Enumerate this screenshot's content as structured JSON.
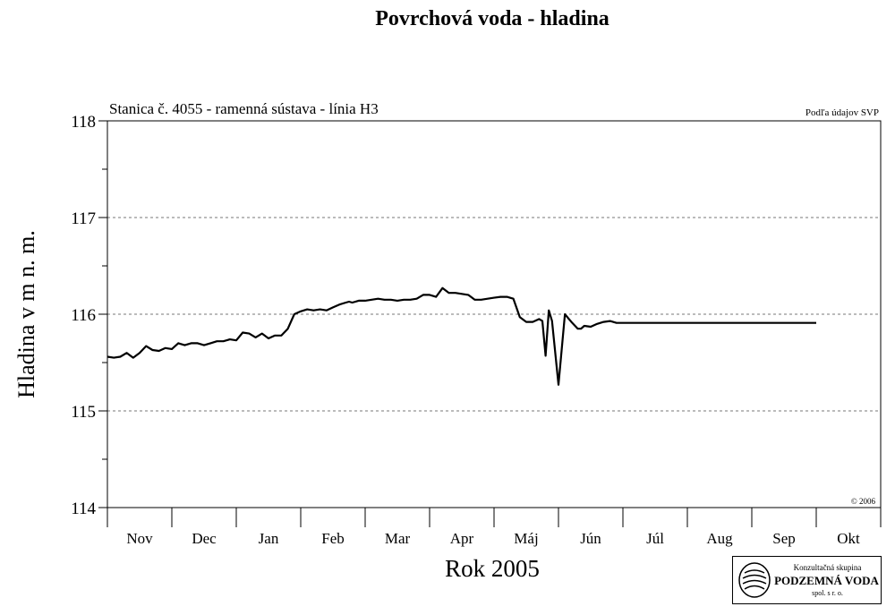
{
  "chart_data": {
    "type": "line",
    "title": "Povrchová voda - hladina",
    "subtitle": "Stanica č. 4055 - ramenná sústava - línia H3",
    "source_note": "Podľa údajov SVP",
    "copyright": "© 2006",
    "xlabel": "Rok 2005",
    "ylabel": "Hladina v m n. m.",
    "ylim": [
      114,
      118
    ],
    "yticks": [
      114,
      115,
      116,
      117,
      118
    ],
    "grid": "dashed horizontal at 115, 116, 117",
    "months": [
      "Nov",
      "Dec",
      "Jan",
      "Feb",
      "Mar",
      "Apr",
      "Máj",
      "Jún",
      "Júl",
      "Aug",
      "Sep",
      "Okt"
    ],
    "series": [
      {
        "color": "#000000",
        "x": [
          0,
          0.1,
          0.2,
          0.3,
          0.4,
          0.5,
          0.6,
          0.7,
          0.8,
          0.9,
          1.0,
          1.1,
          1.2,
          1.3,
          1.4,
          1.5,
          1.6,
          1.7,
          1.8,
          1.9,
          2.0,
          2.1,
          2.2,
          2.3,
          2.4,
          2.5,
          2.6,
          2.7,
          2.8,
          2.9,
          3.0,
          3.1,
          3.2,
          3.3,
          3.4,
          3.5,
          3.6,
          3.7,
          3.75,
          3.8,
          3.9,
          4.0,
          4.1,
          4.2,
          4.3,
          4.4,
          4.5,
          4.6,
          4.7,
          4.8,
          4.9,
          5.0,
          5.1,
          5.2,
          5.3,
          5.4,
          5.5,
          5.6,
          5.7,
          5.8,
          5.9,
          6.0,
          6.1,
          6.2,
          6.3,
          6.4,
          6.5,
          6.6,
          6.7,
          6.75,
          6.8,
          6.85,
          6.9,
          7.0,
          7.1,
          7.2,
          7.3,
          7.35,
          7.4,
          7.5,
          7.6,
          7.7,
          7.8,
          7.9,
          8.0,
          8.1,
          8.2,
          8.3,
          8.4,
          8.5,
          8.6,
          8.7,
          8.75,
          8.8,
          8.85,
          8.9,
          8.95,
          9.0,
          9.1,
          9.2,
          9.3,
          9.4,
          9.5,
          9.6,
          9.7,
          9.8,
          9.9,
          10.0,
          10.05,
          10.1,
          10.15,
          10.2,
          10.3,
          10.4,
          10.5,
          10.6,
          10.7,
          10.8,
          10.9,
          11.0
        ],
        "values": [
          115.56,
          115.55,
          115.56,
          115.6,
          115.55,
          115.6,
          115.67,
          115.63,
          115.62,
          115.65,
          115.64,
          115.7,
          115.68,
          115.7,
          115.7,
          115.68,
          115.7,
          115.72,
          115.72,
          115.74,
          115.73,
          115.81,
          115.8,
          115.76,
          115.8,
          115.75,
          115.78,
          115.78,
          115.85,
          116.0,
          116.03,
          116.05,
          116.04,
          116.05,
          116.04,
          116.07,
          116.1,
          116.12,
          116.13,
          116.12,
          116.14,
          116.14,
          116.15,
          116.16,
          116.15,
          116.15,
          116.14,
          116.15,
          116.15,
          116.16,
          116.2,
          116.2,
          116.18,
          116.27,
          116.22,
          116.22,
          116.21,
          116.2,
          116.15,
          116.15,
          116.16,
          116.17,
          116.18,
          116.18,
          116.16,
          115.97,
          115.92,
          115.92,
          115.95,
          115.93,
          115.57,
          116.04,
          115.93,
          115.27,
          116.0,
          115.92,
          115.85,
          115.85,
          115.88,
          115.87,
          115.9,
          115.92,
          115.93,
          115.91,
          115.91,
          115.91,
          115.91,
          115.91,
          115.91,
          115.91,
          115.91,
          115.91,
          115.91,
          115.91,
          115.91,
          115.91,
          115.91,
          115.91,
          115.91,
          115.91,
          115.91,
          115.91,
          115.91,
          115.91,
          115.91,
          115.91,
          115.91,
          115.91,
          115.91,
          115.91,
          115.91,
          115.91,
          115.91,
          115.91,
          115.91,
          115.91,
          115.91,
          115.91,
          115.91,
          115.91
        ]
      }
    ]
  },
  "logo": {
    "line1": "Konzultačná skupina",
    "line2": "PODZEMNÁ VODA",
    "line3": "spol. s r. o."
  }
}
